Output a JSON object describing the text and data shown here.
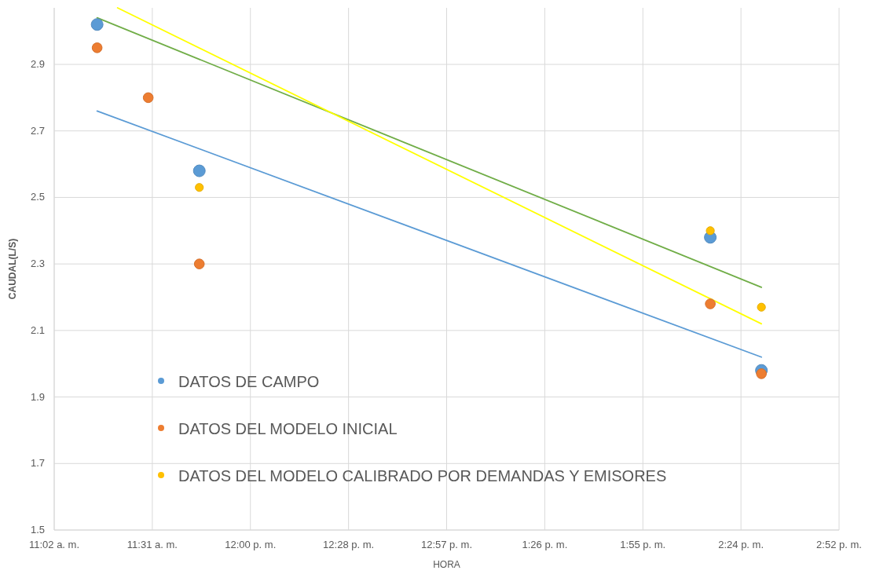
{
  "chart_data": {
    "type": "scatter",
    "xlabel": "HORA",
    "ylabel": "CAUDAL(L/S)",
    "xlim": [
      "2000-01-01T11:02:24",
      "2000-01-01T14:52:48"
    ],
    "xticks": [
      {
        "value": "2000-01-01T11:02:24",
        "label": "11:02 a. m."
      },
      {
        "value": "2000-01-01T11:31:12",
        "label": "11:31 a. m."
      },
      {
        "value": "2000-01-01T12:00",
        "label": "12:00 p. m."
      },
      {
        "value": "2000-01-01T12:28:48",
        "label": "12:28 p. m."
      },
      {
        "value": "2000-01-01T12:57:36",
        "label": "12:57 p. m."
      },
      {
        "value": "2000-01-01T13:26:24",
        "label": "1:26 p. m."
      },
      {
        "value": "2000-01-01T13:55:12",
        "label": "1:55 p. m."
      },
      {
        "value": "2000-01-01T14:24",
        "label": "2:24 p. m."
      },
      {
        "value": "2000-01-01T14:52:48",
        "label": "2:52 p. m."
      }
    ],
    "ylim": [
      1.5,
      3.07
    ],
    "yticks": [
      1.5,
      1.7,
      1.9,
      2.1,
      2.3,
      2.5,
      2.7,
      2.9
    ],
    "grid": true,
    "legend": "bottom left",
    "marker": "circle",
    "series": [
      {
        "type": "line",
        "marker": "none",
        "color": "#5b9bd5",
        "x": [
          "2000-01-01T11:15",
          "2000-01-01T14:30"
        ],
        "values": [
          2.76,
          2.02
        ]
      },
      {
        "type": "line",
        "marker": "none",
        "color": "#70ad47",
        "x": [
          "2000-01-01T11:15",
          "2000-01-01T14:30"
        ],
        "values": [
          3.04,
          2.23
        ]
      },
      {
        "type": "line",
        "marker": "none",
        "color": "#ffff00",
        "x": [
          "2000-01-01T11:21",
          "2000-01-01T14:30"
        ],
        "values": [
          3.07,
          2.12
        ]
      },
      {
        "name": "DATOS DE CAMPO",
        "color": "#5b9bd5",
        "x": [
          "2000-01-01T11:15",
          "2000-01-01T11:45",
          "2000-01-01T14:15",
          "2000-01-01T14:30"
        ],
        "values": [
          3.02,
          2.58,
          2.38,
          1.98
        ]
      },
      {
        "name": "DATOS DEL MODELO INICIAL",
        "color": "#ed7d31",
        "x": [
          "2000-01-01T11:15",
          "2000-01-01T11:30",
          "2000-01-01T11:45",
          "2000-01-01T14:15",
          "2000-01-01T14:30"
        ],
        "values": [
          2.95,
          2.8,
          2.3,
          2.18,
          1.97
        ]
      },
      {
        "name": "DATOS DEL MODELO CALIBRADO POR DEMANDAS Y EMISORES",
        "color": "#ffc000",
        "x": [
          "2000-01-01T11:45",
          "2000-01-01T14:15",
          "2000-01-01T14:30"
        ],
        "values": [
          2.53,
          2.4,
          2.17
        ]
      }
    ]
  }
}
